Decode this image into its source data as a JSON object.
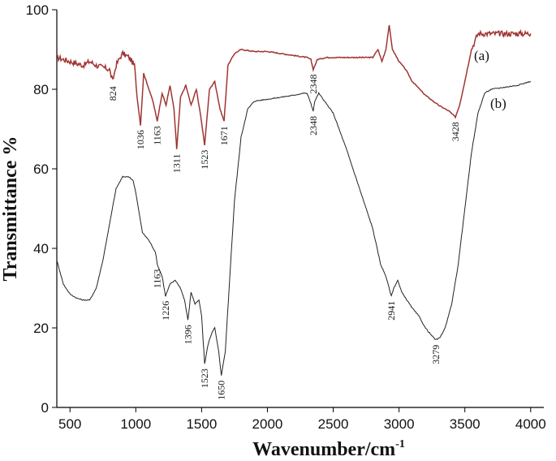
{
  "chart_data": {
    "type": "line",
    "title": "",
    "xlabel": "Wavenumber/cm",
    "xlabel_superscript": "-1",
    "ylabel": "Transmittance %",
    "xlim": [
      400,
      4100
    ],
    "ylim": [
      0,
      100
    ],
    "x_ticks": [
      500,
      1000,
      1500,
      2000,
      2500,
      3000,
      3500,
      4000
    ],
    "y_ticks": [
      0,
      20,
      40,
      60,
      80,
      100
    ],
    "grid": false,
    "legend": "none",
    "series": [
      {
        "name": "(a)",
        "color": "#c0504d",
        "line_color": "#7a2a2a",
        "noise_regions": [
          [
            400,
            1000
          ],
          [
            3550,
            4000
          ]
        ],
        "x": [
          400,
          450,
          500,
          550,
          600,
          650,
          700,
          750,
          800,
          824,
          850,
          880,
          900,
          950,
          990,
          1010,
          1036,
          1060,
          1100,
          1130,
          1163,
          1200,
          1230,
          1260,
          1290,
          1311,
          1340,
          1380,
          1420,
          1460,
          1490,
          1523,
          1560,
          1600,
          1640,
          1671,
          1700,
          1750,
          1800,
          1900,
          2000,
          2100,
          2200,
          2300,
          2330,
          2348,
          2380,
          2450,
          2600,
          2700,
          2800,
          2840,
          2870,
          2900,
          2925,
          2950,
          3000,
          3050,
          3100,
          3200,
          3300,
          3380,
          3428,
          3460,
          3500,
          3550,
          3600,
          3650,
          3700,
          3800,
          3900,
          4000
        ],
        "y": [
          88,
          87.5,
          87,
          86.5,
          86,
          87,
          86,
          85.5,
          85,
          82,
          86,
          88,
          89,
          88,
          86,
          78,
          71,
          84,
          80,
          77,
          72,
          79,
          76,
          81,
          75,
          65,
          78,
          81,
          76,
          80,
          74,
          66,
          80,
          82,
          75,
          72,
          86,
          89,
          90,
          89.5,
          89.5,
          89,
          88.5,
          88,
          87.5,
          85,
          87.5,
          88,
          88,
          88,
          88,
          90,
          87,
          90,
          96,
          90,
          87,
          85,
          82,
          78.5,
          76,
          74.5,
          73,
          76,
          82,
          90,
          94,
          94,
          94,
          94,
          94,
          94
        ]
      },
      {
        "name": "(b)",
        "color": "#222222",
        "x": [
          400,
          450,
          500,
          550,
          600,
          650,
          700,
          750,
          800,
          850,
          900,
          950,
          980,
          1000,
          1050,
          1100,
          1150,
          1163,
          1200,
          1226,
          1260,
          1300,
          1340,
          1370,
          1396,
          1420,
          1450,
          1480,
          1500,
          1523,
          1550,
          1580,
          1600,
          1630,
          1650,
          1680,
          1720,
          1750,
          1800,
          1850,
          1900,
          2000,
          2100,
          2200,
          2270,
          2300,
          2330,
          2348,
          2360,
          2390,
          2500,
          2600,
          2700,
          2800,
          2860,
          2900,
          2941,
          2960,
          2990,
          3020,
          3060,
          3100,
          3150,
          3200,
          3250,
          3279,
          3310,
          3350,
          3400,
          3450,
          3500,
          3550,
          3600,
          3650,
          3700,
          3800,
          3900,
          4000
        ],
        "y": [
          37,
          31,
          28.5,
          27.5,
          27,
          27,
          30,
          37,
          46,
          55,
          58,
          58,
          57,
          54,
          44,
          42,
          39,
          36,
          33,
          28,
          31,
          32,
          30,
          27,
          22,
          29,
          26,
          27,
          23,
          11,
          16,
          19,
          20,
          14,
          8,
          14,
          36,
          52,
          68,
          75,
          77,
          77.5,
          78,
          78.5,
          79,
          79,
          76.5,
          74.5,
          77,
          79,
          74,
          65,
          55,
          45,
          36,
          33,
          28,
          30,
          32,
          29,
          27,
          25,
          23,
          20,
          18,
          17,
          17.5,
          20,
          26,
          36,
          50,
          64,
          74,
          79,
          80,
          80.5,
          81,
          82
        ]
      }
    ],
    "annotations": {
      "a": [
        {
          "text": "824",
          "x": 824,
          "y": 82
        },
        {
          "text": "1036",
          "x": 1036,
          "y": 71
        },
        {
          "text": "1163",
          "x": 1163,
          "y": 72
        },
        {
          "text": "1311",
          "x": 1311,
          "y": 65
        },
        {
          "text": "1523",
          "x": 1523,
          "y": 66
        },
        {
          "text": "1671",
          "x": 1671,
          "y": 72
        },
        {
          "text": "2348",
          "x": 2348,
          "y": 85
        },
        {
          "text": "3428",
          "x": 3428,
          "y": 73
        }
      ],
      "b": [
        {
          "text": "1163",
          "x": 1163,
          "y": 36
        },
        {
          "text": "1226",
          "x": 1226,
          "y": 28
        },
        {
          "text": "1396",
          "x": 1396,
          "y": 22
        },
        {
          "text": "1523",
          "x": 1523,
          "y": 11
        },
        {
          "text": "1650",
          "x": 1650,
          "y": 8
        },
        {
          "text": "2348",
          "x": 2348,
          "y": 74.5
        },
        {
          "text": "2941",
          "x": 2941,
          "y": 28
        },
        {
          "text": "3279",
          "x": 3279,
          "y": 17
        }
      ]
    }
  }
}
